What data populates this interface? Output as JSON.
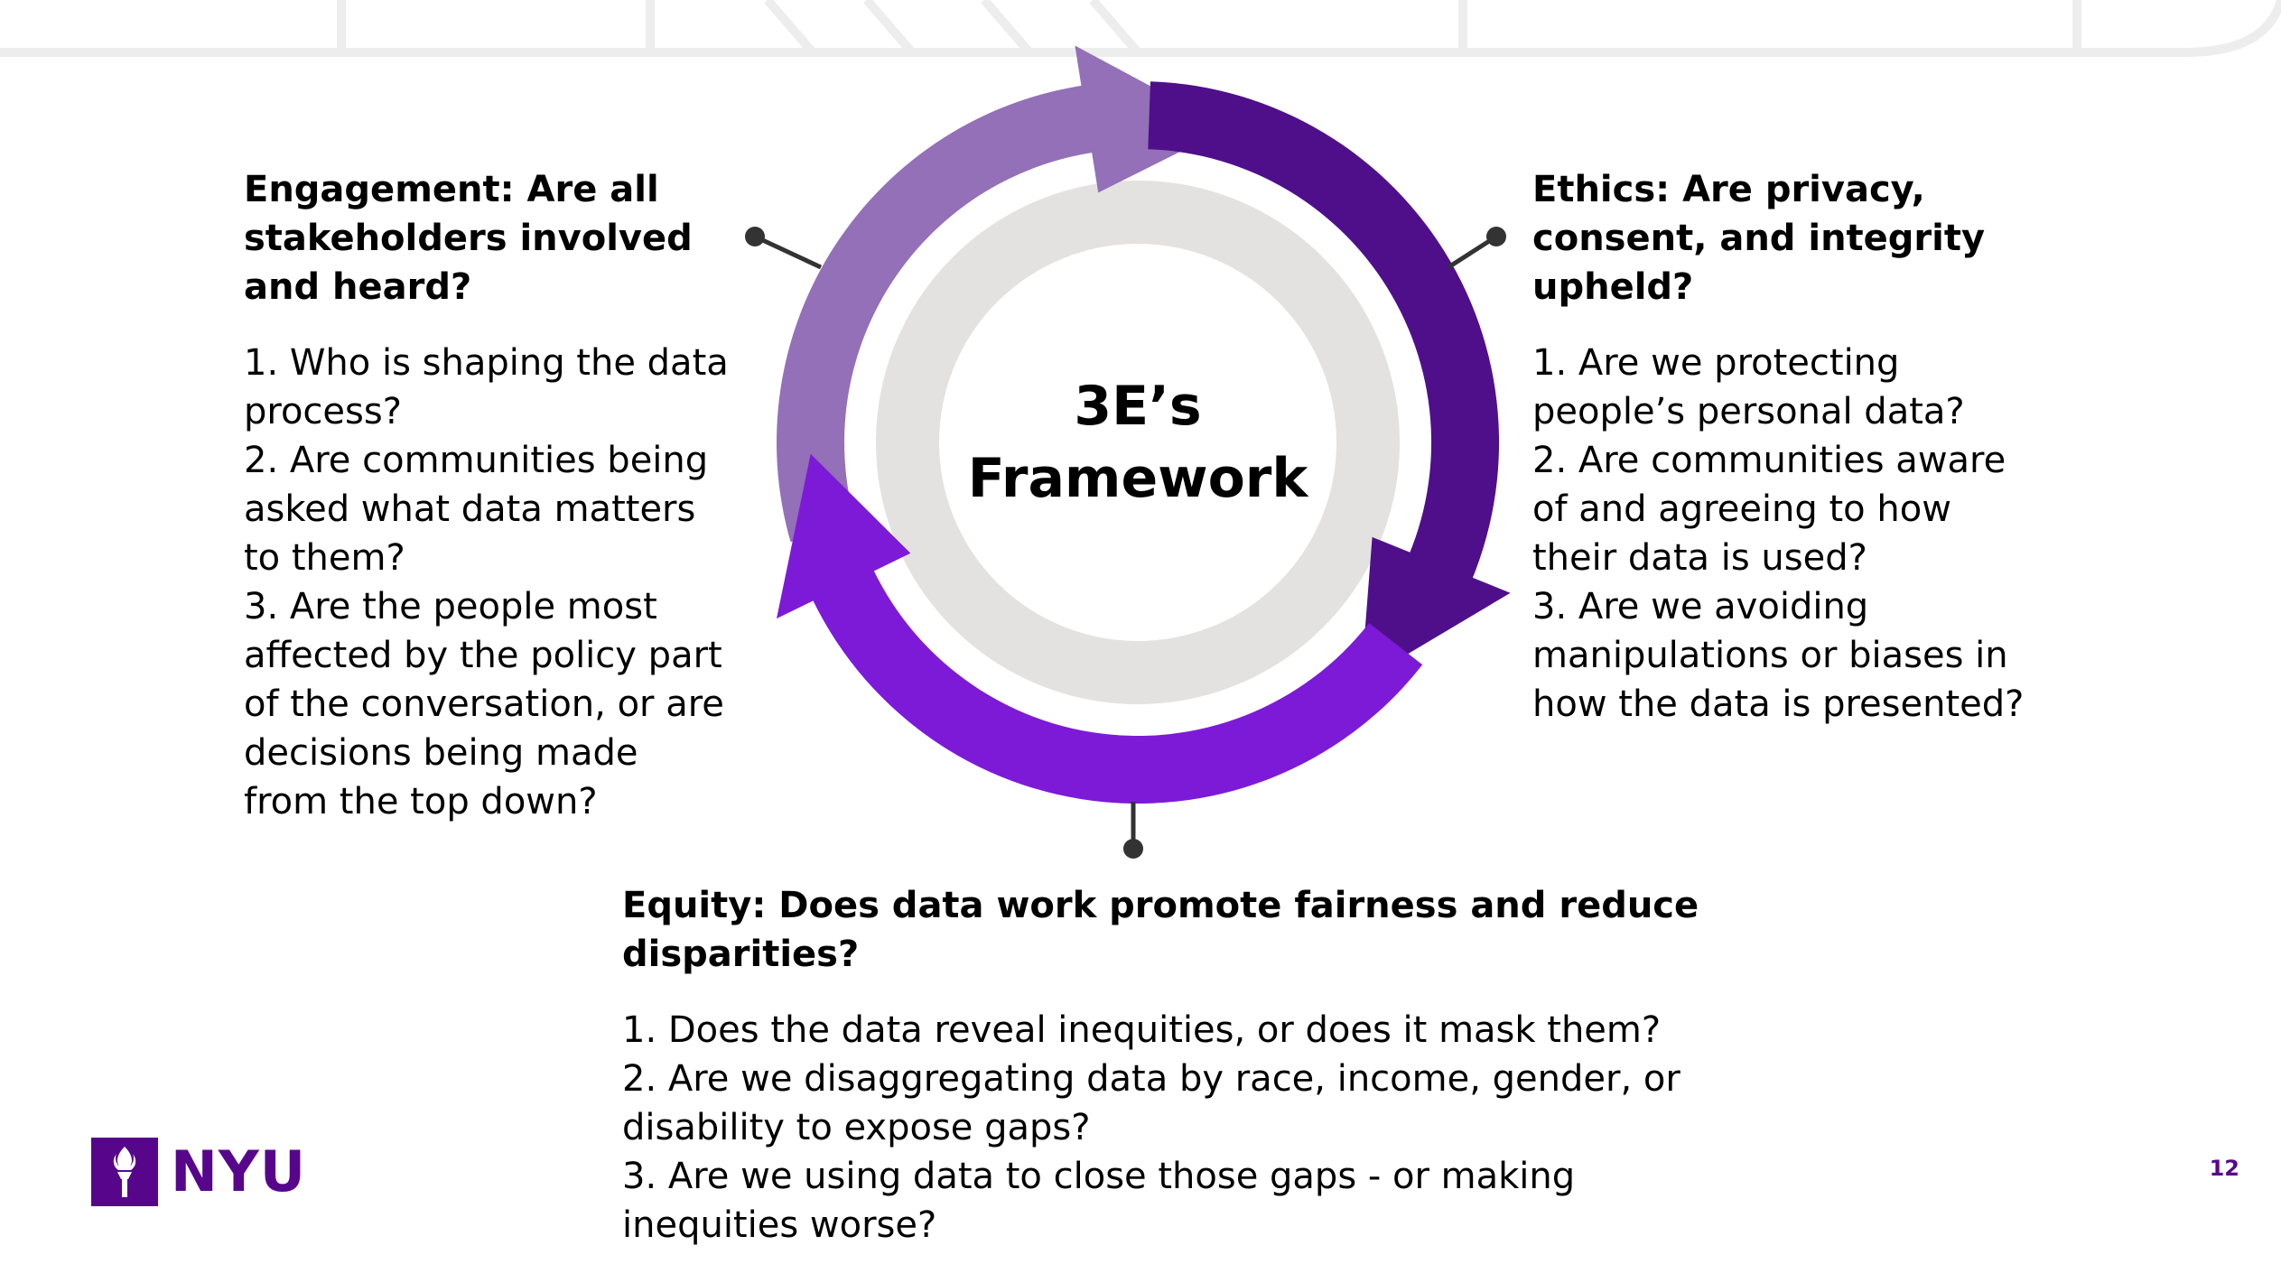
{
  "colors": {
    "arrow_top_light": "#9370b8",
    "arrow_right_dark": "#4f0f8b",
    "arrow_bottom_vivid": "#7d1ad8",
    "inner_ring": "#e3e2e0",
    "brand": "#57068c"
  },
  "center": {
    "title_line1": "3E’s",
    "title_line2": "Framework"
  },
  "engagement": {
    "heading": "Engagement: Are all stakeholders involved and heard?",
    "items": [
      "1. Who is shaping the data process?",
      "2. Are communities being asked what data matters to them?",
      "3. Are the people most affected by the policy part of the conversation, or are decisions being made from the top down?"
    ]
  },
  "ethics": {
    "heading": "Ethics: Are privacy, consent, and integrity upheld?",
    "items": [
      "1. Are we protecting people’s personal data?",
      "2. Are communities aware of and agreeing to how their data is used?",
      "3. Are we avoiding manipulations or biases in how the data is presented?"
    ]
  },
  "equity": {
    "heading": "Equity: Does data work promote fairness and reduce disparities?",
    "items": [
      "1. Does the data reveal inequities, or does it mask them?",
      "2. Are we disaggregating data by race, income, gender, or disability to expose gaps?",
      "3. Are we using data to close those gaps - or making inequities worse?"
    ]
  },
  "logo": {
    "text": "NYU",
    "icon": "torch-icon"
  },
  "page_number": "12"
}
